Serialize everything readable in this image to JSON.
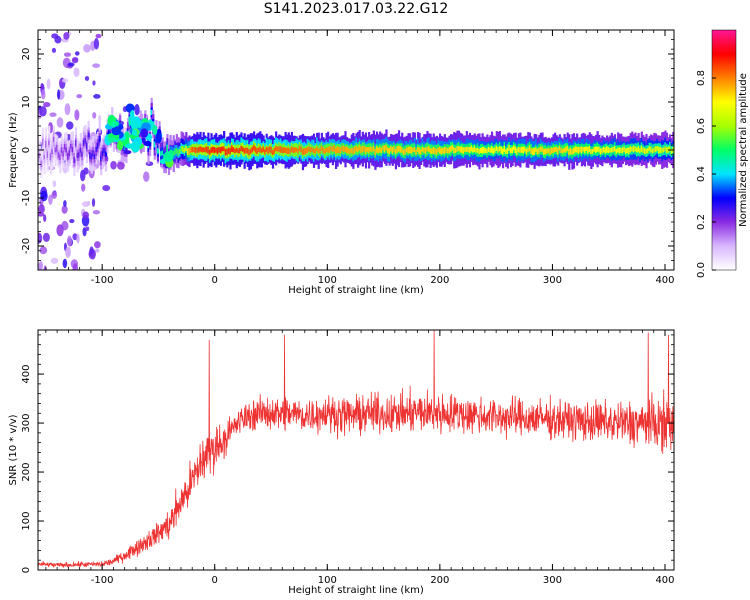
{
  "title": "S141.2023.017.03.22.G12",
  "chart_data": [
    {
      "type": "heatmap",
      "title": "",
      "xlabel": "Height of straight line (km)",
      "ylabel": "Frequency (Hz)",
      "xlim": [
        -157,
        408
      ],
      "ylim": [
        -25,
        25
      ],
      "x_ticks": [
        -100,
        0,
        100,
        200,
        300,
        400
      ],
      "y_ticks": [
        -20,
        -10,
        0,
        10,
        20
      ],
      "colorbar": {
        "label": "Normalized spectral amplitude",
        "range": [
          0,
          1
        ],
        "ticks": [
          "0.0",
          "0.2",
          "0.4",
          "0.6",
          "0.8"
        ],
        "colors": [
          "#ffffff",
          "#d9b8ff",
          "#8a2be2",
          "#0000ff",
          "#00e5ff",
          "#00ff66",
          "#a8ff00",
          "#ffff00",
          "#ff8000",
          "#ff0000",
          "#ff1493"
        ]
      },
      "ridge_center_hz": [
        [
          -157,
          0
        ],
        [
          -100,
          0
        ],
        [
          -90,
          5
        ],
        [
          -85,
          3
        ],
        [
          -80,
          1
        ],
        [
          -75,
          6
        ],
        [
          -70,
          2
        ],
        [
          -65,
          4
        ],
        [
          -60,
          3
        ],
        [
          -55,
          5
        ],
        [
          -50,
          1
        ],
        [
          -45,
          -2
        ],
        [
          -40,
          -1
        ],
        [
          -30,
          0
        ],
        [
          0,
          0
        ],
        [
          50,
          0
        ],
        [
          100,
          0
        ],
        [
          150,
          0
        ],
        [
          200,
          0
        ],
        [
          250,
          0
        ],
        [
          300,
          0
        ],
        [
          350,
          0
        ],
        [
          408,
          0
        ]
      ],
      "ridge_peak_amplitude": [
        [
          -157,
          0.15
        ],
        [
          -100,
          0.3
        ],
        [
          -80,
          0.4
        ],
        [
          -60,
          0.45
        ],
        [
          -45,
          0.5
        ],
        [
          -30,
          0.6
        ],
        [
          -20,
          0.9
        ],
        [
          0,
          0.95
        ],
        [
          50,
          0.9
        ],
        [
          100,
          0.85
        ],
        [
          150,
          0.8
        ],
        [
          200,
          0.8
        ],
        [
          250,
          0.75
        ],
        [
          300,
          0.8
        ],
        [
          350,
          0.75
        ],
        [
          408,
          0.7
        ]
      ]
    },
    {
      "type": "line",
      "title": "",
      "xlabel": "Height of straight line (km)",
      "ylabel": "SNR (10 * v/v)",
      "xlim": [
        -157,
        408
      ],
      "ylim": [
        0,
        490
      ],
      "x_ticks": [
        -100,
        0,
        100,
        200,
        300,
        400
      ],
      "y_ticks": [
        0,
        100,
        200,
        300,
        400
      ],
      "series": [
        {
          "color": "#ee3333",
          "x": [
            -157,
            -140,
            -120,
            -100,
            -90,
            -80,
            -70,
            -60,
            -50,
            -40,
            -30,
            -20,
            -10,
            0,
            10,
            20,
            30,
            40,
            50,
            60,
            70,
            80,
            90,
            100,
            120,
            140,
            160,
            180,
            200,
            220,
            240,
            260,
            280,
            300,
            320,
            340,
            360,
            380,
            400,
            408
          ],
          "mean": [
            12,
            10,
            11,
            12,
            18,
            30,
            45,
            60,
            75,
            95,
            140,
            180,
            230,
            250,
            270,
            300,
            315,
            320,
            322,
            318,
            320,
            315,
            318,
            320,
            315,
            320,
            318,
            322,
            320,
            318,
            315,
            312,
            310,
            308,
            305,
            302,
            300,
            300,
            298,
            295
          ],
          "spread": [
            8,
            8,
            8,
            10,
            12,
            18,
            25,
            30,
            35,
            50,
            60,
            70,
            80,
            70,
            50,
            45,
            45,
            50,
            55,
            55,
            55,
            55,
            55,
            55,
            60,
            60,
            60,
            65,
            65,
            60,
            60,
            60,
            60,
            60,
            60,
            65,
            70,
            75,
            85,
            90
          ],
          "peaks": [
            [
              -5,
              470
            ],
            [
              62,
              480
            ],
            [
              195,
              490
            ],
            [
              385,
              485
            ],
            [
              403,
              480
            ]
          ]
        }
      ]
    }
  ]
}
